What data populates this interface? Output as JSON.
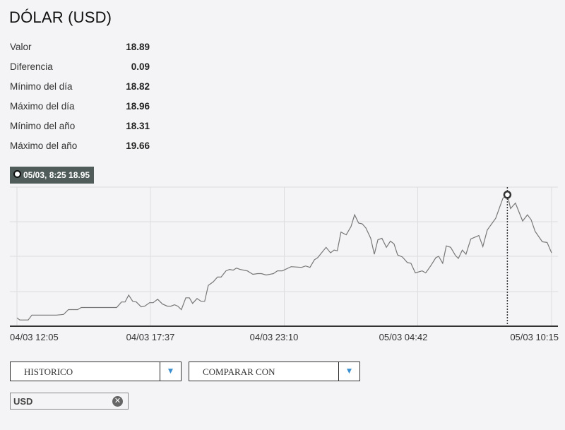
{
  "header": {
    "title": "DÓLAR (USD)"
  },
  "stats": [
    {
      "label": "Valor",
      "value": "18.89"
    },
    {
      "label": "Diferencia",
      "value": "0.09"
    },
    {
      "label": "Mínimo del día",
      "value": "18.82"
    },
    {
      "label": "Máximo del día",
      "value": "18.96"
    },
    {
      "label": "Mínimo del año",
      "value": "18.31"
    },
    {
      "label": "Máximo del año",
      "value": "19.66"
    }
  ],
  "chart_data": {
    "type": "line",
    "tooltip": "05/03, 8:25 18.95",
    "highlight": {
      "x": "05/03 08:25",
      "y": 18.95
    },
    "x_ticks": [
      "04/03 12:05",
      "04/03 17:37",
      "04/03 23:10",
      "05/03 04:42",
      "05/03 10:15"
    ],
    "ylim": [
      18.76,
      18.96
    ],
    "grid": true,
    "line_color": "#777777",
    "points": [
      [
        "04/03 12:05",
        18.772
      ],
      [
        "04/03 12:12",
        18.769
      ],
      [
        "04/03 12:33",
        18.769
      ],
      [
        "04/03 12:42",
        18.776
      ],
      [
        "04/03 13:43",
        18.776
      ],
      [
        "04/03 14:01",
        18.777
      ],
      [
        "04/03 14:13",
        18.784
      ],
      [
        "04/03 14:36",
        18.784
      ],
      [
        "04/03 14:45",
        18.787
      ],
      [
        "04/03 16:13",
        18.787
      ],
      [
        "04/03 16:25",
        18.795
      ],
      [
        "04/03 16:34",
        18.795
      ],
      [
        "04/03 16:43",
        18.805
      ],
      [
        "04/03 16:53",
        18.796
      ],
      [
        "04/03 17:02",
        18.795
      ],
      [
        "04/03 17:14",
        18.788
      ],
      [
        "04/03 17:23",
        18.789
      ],
      [
        "04/03 17:35",
        18.794
      ],
      [
        "04/03 17:44",
        18.794
      ],
      [
        "04/03 17:55",
        18.799
      ],
      [
        "04/03 18:07",
        18.792
      ],
      [
        "04/03 18:19",
        18.789
      ],
      [
        "04/03 18:28",
        18.789
      ],
      [
        "04/03 18:37",
        18.791
      ],
      [
        "04/03 18:45",
        18.789
      ],
      [
        "04/03 18:54",
        18.784
      ],
      [
        "04/03 19:05",
        18.801
      ],
      [
        "04/03 19:14",
        18.801
      ],
      [
        "04/03 19:22",
        18.793
      ],
      [
        "04/03 19:33",
        18.8
      ],
      [
        "04/03 19:43",
        18.796
      ],
      [
        "04/03 19:52",
        18.796
      ],
      [
        "04/03 20:01",
        18.819
      ],
      [
        "04/03 20:13",
        18.824
      ],
      [
        "04/03 20:24",
        18.831
      ],
      [
        "04/03 20:33",
        18.831
      ],
      [
        "04/03 20:45",
        18.84
      ],
      [
        "04/03 20:54",
        18.842
      ],
      [
        "04/03 21:03",
        18.841
      ],
      [
        "04/03 21:11",
        18.844
      ],
      [
        "04/03 21:20",
        18.842
      ],
      [
        "04/03 21:38",
        18.84
      ],
      [
        "04/03 21:52",
        18.835
      ],
      [
        "04/03 22:04",
        18.836
      ],
      [
        "04/03 22:13",
        18.836
      ],
      [
        "04/03 22:25",
        18.834
      ],
      [
        "04/03 22:43",
        18.836
      ],
      [
        "04/03 22:53",
        18.84
      ],
      [
        "04/03 23:05",
        18.84
      ],
      [
        "04/03 23:27",
        18.846
      ],
      [
        "04/03 23:53",
        18.845
      ],
      [
        "05/03 00:03",
        18.847
      ],
      [
        "05/03 00:14",
        18.845
      ],
      [
        "05/03 00:25",
        18.856
      ],
      [
        "05/03 00:33",
        18.859
      ],
      [
        "05/03 00:54",
        18.874
      ],
      [
        "05/03 01:05",
        18.866
      ],
      [
        "05/03 01:14",
        18.87
      ],
      [
        "05/03 01:22",
        18.869
      ],
      [
        "05/03 01:31",
        18.896
      ],
      [
        "05/03 01:44",
        18.892
      ],
      [
        "05/03 01:56",
        18.904
      ],
      [
        "05/03 02:05",
        18.921
      ],
      [
        "05/03 02:15",
        18.909
      ],
      [
        "05/03 02:24",
        18.908
      ],
      [
        "05/03 02:33",
        18.902
      ],
      [
        "05/03 02:45",
        18.887
      ],
      [
        "05/03 02:54",
        18.864
      ],
      [
        "05/03 03:03",
        18.885
      ],
      [
        "05/03 03:13",
        18.887
      ],
      [
        "05/03 03:24",
        18.874
      ],
      [
        "05/03 03:34",
        18.883
      ],
      [
        "05/03 03:43",
        18.879
      ],
      [
        "05/03 03:52",
        18.863
      ],
      [
        "05/03 04:04",
        18.86
      ],
      [
        "05/03 04:16",
        18.852
      ],
      [
        "05/03 04:25",
        18.851
      ],
      [
        "05/03 04:36",
        18.837
      ],
      [
        "05/03 04:53",
        18.84
      ],
      [
        "05/03 05:02",
        18.837
      ],
      [
        "05/03 05:14",
        18.847
      ],
      [
        "05/03 05:27",
        18.859
      ],
      [
        "05/03 05:34",
        18.861
      ],
      [
        "05/03 05:44",
        18.851
      ],
      [
        "05/03 05:53",
        18.876
      ],
      [
        "05/03 06:04",
        18.874
      ],
      [
        "05/03 06:16",
        18.862
      ],
      [
        "05/03 06:23",
        18.858
      ],
      [
        "05/03 06:33",
        18.87
      ],
      [
        "05/03 06:42",
        18.864
      ],
      [
        "05/03 06:54",
        18.886
      ],
      [
        "05/03 07:14",
        18.891
      ],
      [
        "05/03 07:24",
        18.875
      ],
      [
        "05/03 07:35",
        18.899
      ],
      [
        "05/03 07:56",
        18.916
      ],
      [
        "05/03 08:14",
        18.945
      ],
      [
        "05/03 08:25",
        18.95
      ],
      [
        "05/03 08:33",
        18.93
      ],
      [
        "05/03 08:45",
        18.938
      ],
      [
        "05/03 09:03",
        18.912
      ],
      [
        "05/03 09:15",
        18.921
      ],
      [
        "05/03 09:24",
        18.914
      ],
      [
        "05/03 09:34",
        18.897
      ],
      [
        "05/03 09:52",
        18.882
      ],
      [
        "05/03 10:04",
        18.881
      ],
      [
        "05/03 10:15",
        18.866
      ]
    ]
  },
  "controls": {
    "historico_label": "HISTORICO",
    "comparar_label": "COMPARAR CON",
    "dropdown_arrow": "▼",
    "chip_label": "USD",
    "chip_remove": "✕"
  }
}
